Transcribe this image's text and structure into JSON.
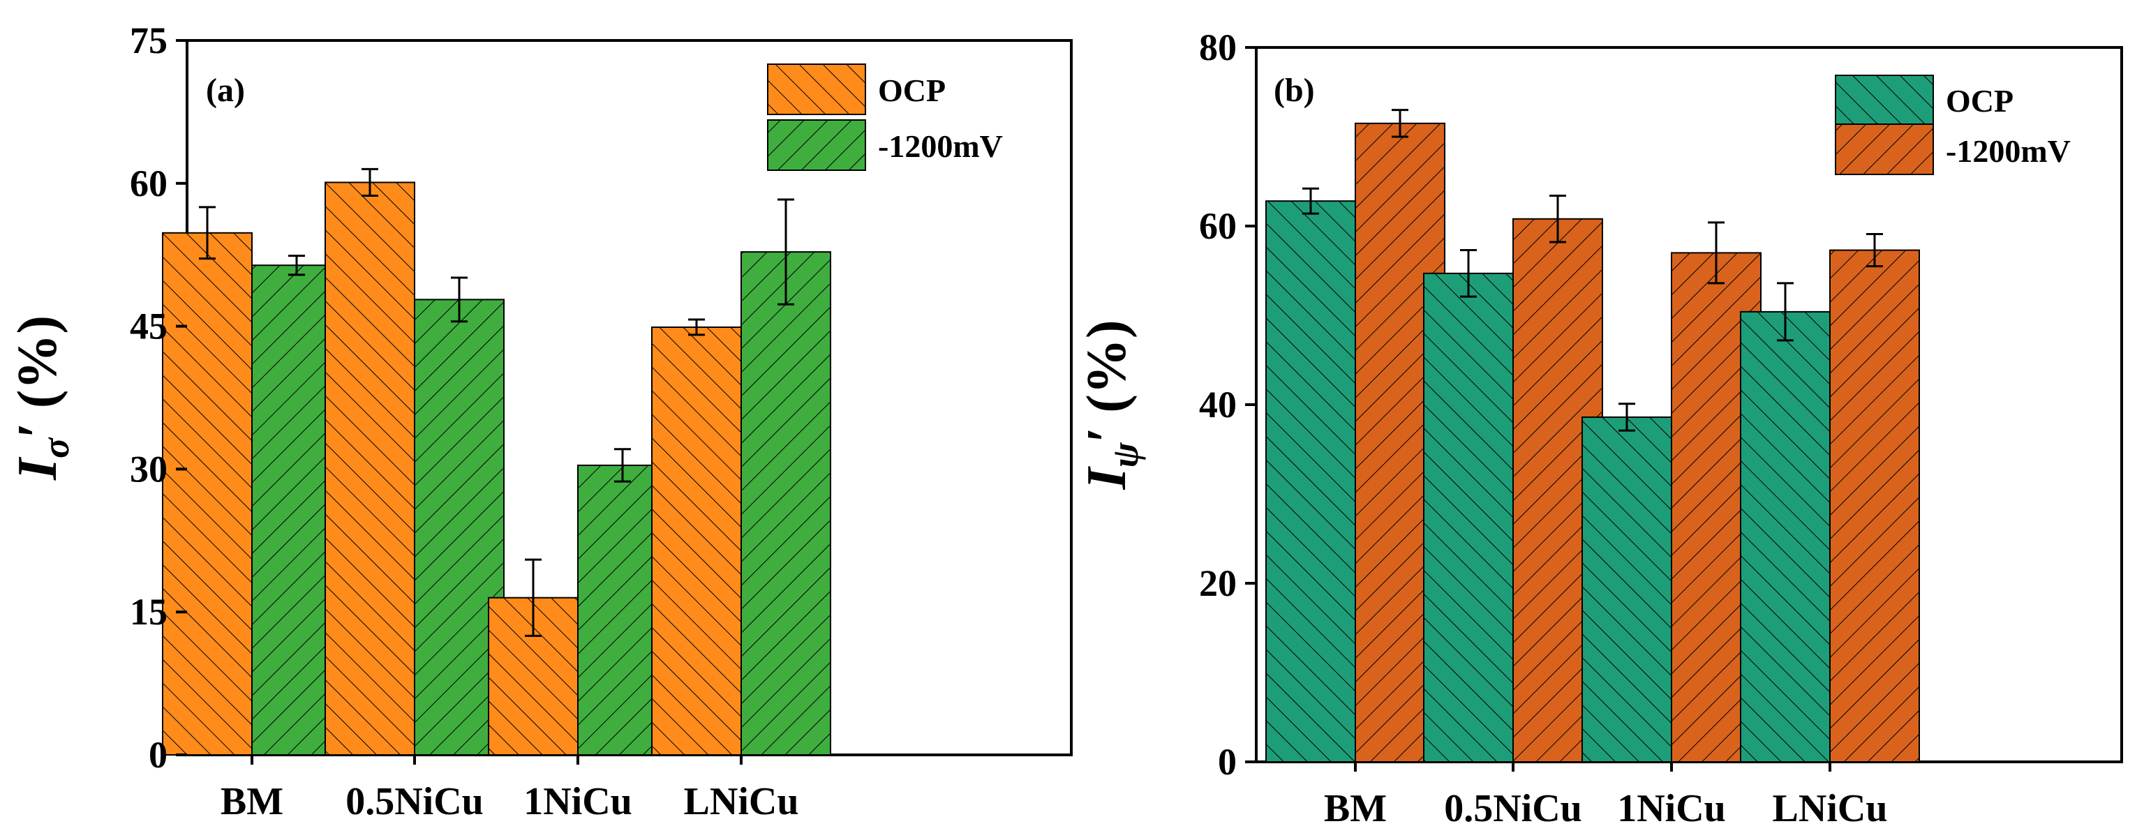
{
  "chart_data": [
    {
      "type": "bar",
      "panel_label": "(a)",
      "ylabel": "I",
      "ylabel_sub": "σ",
      "ylabel_suffix": "′ (%)",
      "ylim": [
        0,
        75
      ],
      "yticks": [
        0,
        15,
        30,
        45,
        60,
        75
      ],
      "categories": [
        "BM",
        "0.5NiCu",
        "1NiCu",
        "LNiCu"
      ],
      "legend_position": "top-right",
      "series": [
        {
          "name": "OCP",
          "color": "#FF8C1A",
          "hatch": "backslash",
          "values": [
            54.8,
            60.1,
            16.5,
            44.9
          ],
          "errors": [
            2.7,
            1.4,
            4.0,
            0.8
          ]
        },
        {
          "name": "-1200mV",
          "color": "#3FAE3F",
          "hatch": "slash",
          "values": [
            51.4,
            47.8,
            30.4,
            52.8
          ],
          "errors": [
            1.0,
            2.3,
            1.7,
            5.5
          ]
        }
      ]
    },
    {
      "type": "bar",
      "panel_label": "(b)",
      "ylabel": "I",
      "ylabel_sub": "ψ",
      "ylabel_suffix": "′ (%)",
      "ylim": [
        0,
        80
      ],
      "yticks": [
        0,
        20,
        40,
        60,
        80
      ],
      "categories": [
        "BM",
        "0.5NiCu",
        "1NiCu",
        "LNiCu"
      ],
      "legend_position": "top-right",
      "series": [
        {
          "name": "OCP",
          "color": "#1E9E78",
          "hatch": "backslash",
          "values": [
            62.8,
            54.7,
            38.6,
            50.4
          ],
          "errors": [
            1.4,
            2.6,
            1.5,
            3.2
          ]
        },
        {
          "name": "-1200mV",
          "color": "#D9631C",
          "hatch": "slash",
          "values": [
            71.5,
            60.8,
            57.0,
            57.3
          ],
          "errors": [
            1.5,
            2.6,
            3.4,
            1.8
          ]
        }
      ]
    }
  ]
}
